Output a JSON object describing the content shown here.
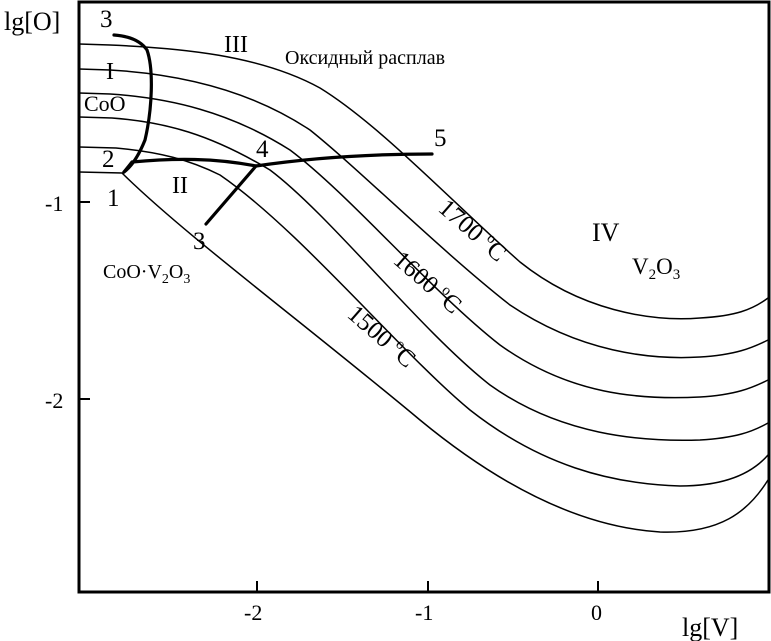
{
  "axes": {
    "y_label": "lg[O]",
    "x_label": "lg[V]",
    "y_ticks": [
      "-1",
      "-2"
    ],
    "x_ticks": [
      "-2",
      "-1",
      "0"
    ]
  },
  "regions": {
    "I": "I",
    "II": "II",
    "III": "III",
    "IV": "IV",
    "melt": "Оксидный расплав",
    "coo": "CoO",
    "v2o3_v": "V",
    "v2o3_sub2": "2",
    "v2o3_o": "O",
    "v2o3_sub3": "3",
    "spinel_a": "CoO·V",
    "spinel_sub2": "2",
    "spinel_b": "O",
    "spinel_sub3": "3"
  },
  "points": {
    "p1": "1",
    "p2": "2",
    "p3_top": "3",
    "p3_low": "3",
    "p4": "4",
    "p5": "5"
  },
  "isotherms": {
    "t1700": "1700",
    "t1600": "1600",
    "t1500": "1500",
    "deg": "o",
    "unit": "C"
  }
}
